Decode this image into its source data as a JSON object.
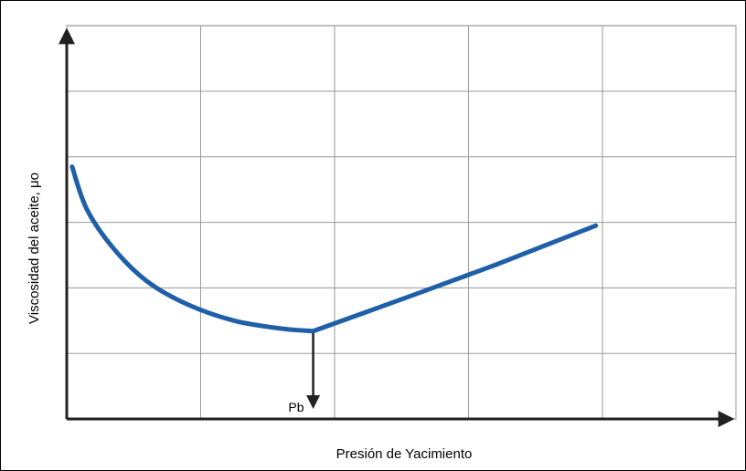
{
  "chart_data": {
    "type": "line",
    "title": "",
    "xlabel": "Presión de Yacimiento",
    "ylabel": "Viscosidad del aceite, μo",
    "xlim": [
      0,
      5
    ],
    "ylim": [
      0,
      6
    ],
    "grid": true,
    "x_tick_labels": [],
    "y_tick_labels": [],
    "series": [
      {
        "color": "#1f5fa8",
        "points": [
          {
            "x": 0.04,
            "y": 3.85
          },
          {
            "x": 0.15,
            "y": 3.2
          },
          {
            "x": 0.35,
            "y": 2.6
          },
          {
            "x": 0.6,
            "y": 2.1
          },
          {
            "x": 0.9,
            "y": 1.75
          },
          {
            "x": 1.25,
            "y": 1.5
          },
          {
            "x": 1.6,
            "y": 1.38
          },
          {
            "x": 1.84,
            "y": 1.34
          },
          {
            "x": 2.6,
            "y": 1.9
          },
          {
            "x": 3.2,
            "y": 2.35
          },
          {
            "x": 3.95,
            "y": 2.95
          }
        ]
      }
    ],
    "annotations": [
      {
        "text": "Pb",
        "x": 1.84,
        "y": 0.0
      }
    ]
  }
}
